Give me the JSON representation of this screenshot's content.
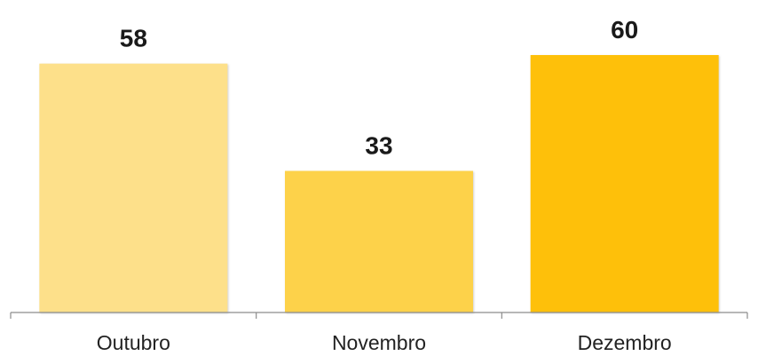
{
  "chart_data": {
    "type": "bar",
    "title": "",
    "xlabel": "",
    "ylabel": "",
    "categories": [
      "Outubro",
      "Novembro",
      "Dezembro"
    ],
    "values": [
      58,
      33,
      60
    ],
    "data_labels": [
      "58",
      "33",
      "60"
    ],
    "colors": [
      "#fde08a",
      "#fdd24a",
      "#fec00a"
    ],
    "ylim": [
      0,
      60
    ],
    "grid": false,
    "legend": "none",
    "y_axis_visible": false
  }
}
